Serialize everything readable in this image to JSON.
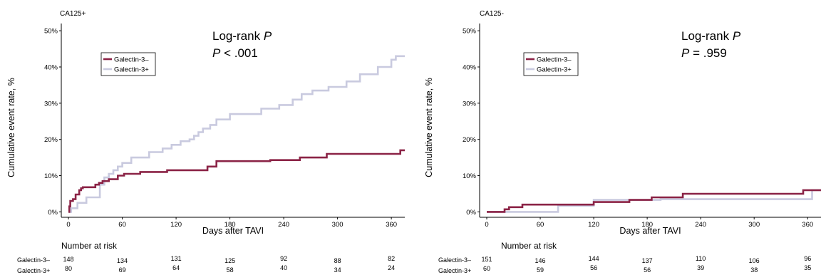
{
  "colors": {
    "galectin_neg": "#8b2346",
    "galectin_pos": "#c9cadf"
  },
  "chart_data": [
    {
      "type": "line",
      "panel_title": "CA125+",
      "xlabel": "Days after TAVI",
      "ylabel": "Cumulative event rate, %",
      "xlim": [
        -8,
        375
      ],
      "ylim": [
        -1.5,
        52
      ],
      "x_ticks": [
        0,
        60,
        120,
        180,
        240,
        300,
        360
      ],
      "y_ticks": [
        0,
        10,
        20,
        30,
        40,
        50
      ],
      "y_tick_labels": [
        "0%",
        "10%",
        "20%",
        "30%",
        "40%",
        "50%"
      ],
      "stat_title": "Log-rank",
      "stat_title_p": "P",
      "stat_p_symbol": "P",
      "stat_value": " < .001",
      "legend_position": "top-left",
      "series": [
        {
          "name": "Galectin-3–",
          "color": "#8b2346",
          "x": [
            0,
            1,
            2,
            5,
            8,
            12,
            14,
            16,
            30,
            34,
            38,
            45,
            55,
            62,
            80,
            110,
            155,
            165,
            225,
            258,
            288,
            370,
            375
          ],
          "y": [
            0,
            1.5,
            3,
            3.5,
            4.8,
            6,
            6.5,
            6.8,
            7.5,
            8,
            8.5,
            9,
            10,
            10.5,
            11,
            11.5,
            12.5,
            14,
            14.3,
            15,
            16,
            17,
            17
          ]
        },
        {
          "name": "Galectin-3+",
          "color": "#c9cadf",
          "x": [
            0,
            3,
            10,
            20,
            35,
            40,
            45,
            50,
            55,
            60,
            70,
            90,
            105,
            115,
            125,
            135,
            140,
            145,
            150,
            158,
            165,
            180,
            215,
            235,
            250,
            260,
            272,
            290,
            310,
            325,
            345,
            360,
            365,
            375
          ],
          "y": [
            0,
            1,
            2.5,
            4,
            7.5,
            9.5,
            10.5,
            11.5,
            12.5,
            13.5,
            15,
            16.5,
            17.5,
            18.5,
            19.5,
            20,
            21,
            22,
            23,
            24,
            25.5,
            27,
            28.5,
            29.5,
            31,
            32.5,
            33.5,
            34.5,
            36,
            38,
            40,
            42,
            43,
            43
          ]
        }
      ],
      "risk": {
        "title": "Number at risk",
        "rows": [
          {
            "label": "Galectin-3–",
            "values": [
              "148",
              "134",
              "131",
              "125",
              "92",
              "88",
              "82"
            ]
          },
          {
            "label": "Galectin-3+",
            "values": [
              "80",
              "69",
              "64",
              "58",
              "40",
              "34",
              "24"
            ]
          }
        ]
      }
    },
    {
      "type": "line",
      "panel_title": "CA125-",
      "xlabel": "Days after TAVI",
      "ylabel": "Cumulative event rate, %",
      "xlim": [
        -8,
        375
      ],
      "ylim": [
        -1.5,
        52
      ],
      "x_ticks": [
        0,
        60,
        120,
        180,
        240,
        300,
        360
      ],
      "y_ticks": [
        0,
        10,
        20,
        30,
        40,
        50
      ],
      "y_tick_labels": [
        "0%",
        "10%",
        "20%",
        "30%",
        "40%",
        "50%"
      ],
      "stat_title": "Log-rank",
      "stat_title_p": "P",
      "stat_p_symbol": "P",
      "stat_value": " = .959",
      "legend_position": "top-left",
      "series": [
        {
          "name": "Galectin-3–",
          "color": "#8b2346",
          "x": [
            0,
            20,
            25,
            40,
            120,
            160,
            185,
            220,
            355,
            375
          ],
          "y": [
            0,
            0.7,
            1.3,
            2,
            2.7,
            3.3,
            4,
            5,
            6,
            6
          ]
        },
        {
          "name": "Galectin-3+",
          "color": "#c9cadf",
          "x": [
            0,
            80,
            120,
            195,
            365,
            375
          ],
          "y": [
            0,
            1.7,
            3.3,
            3.5,
            6,
            6
          ]
        }
      ],
      "risk": {
        "title": "Number at risk",
        "rows": [
          {
            "label": "Galectin-3–",
            "values": [
              "151",
              "146",
              "144",
              "137",
              "110",
              "106",
              "96"
            ]
          },
          {
            "label": "Galectin-3+",
            "values": [
              "60",
              "59",
              "56",
              "56",
              "39",
              "38",
              "35"
            ]
          }
        ]
      }
    }
  ]
}
